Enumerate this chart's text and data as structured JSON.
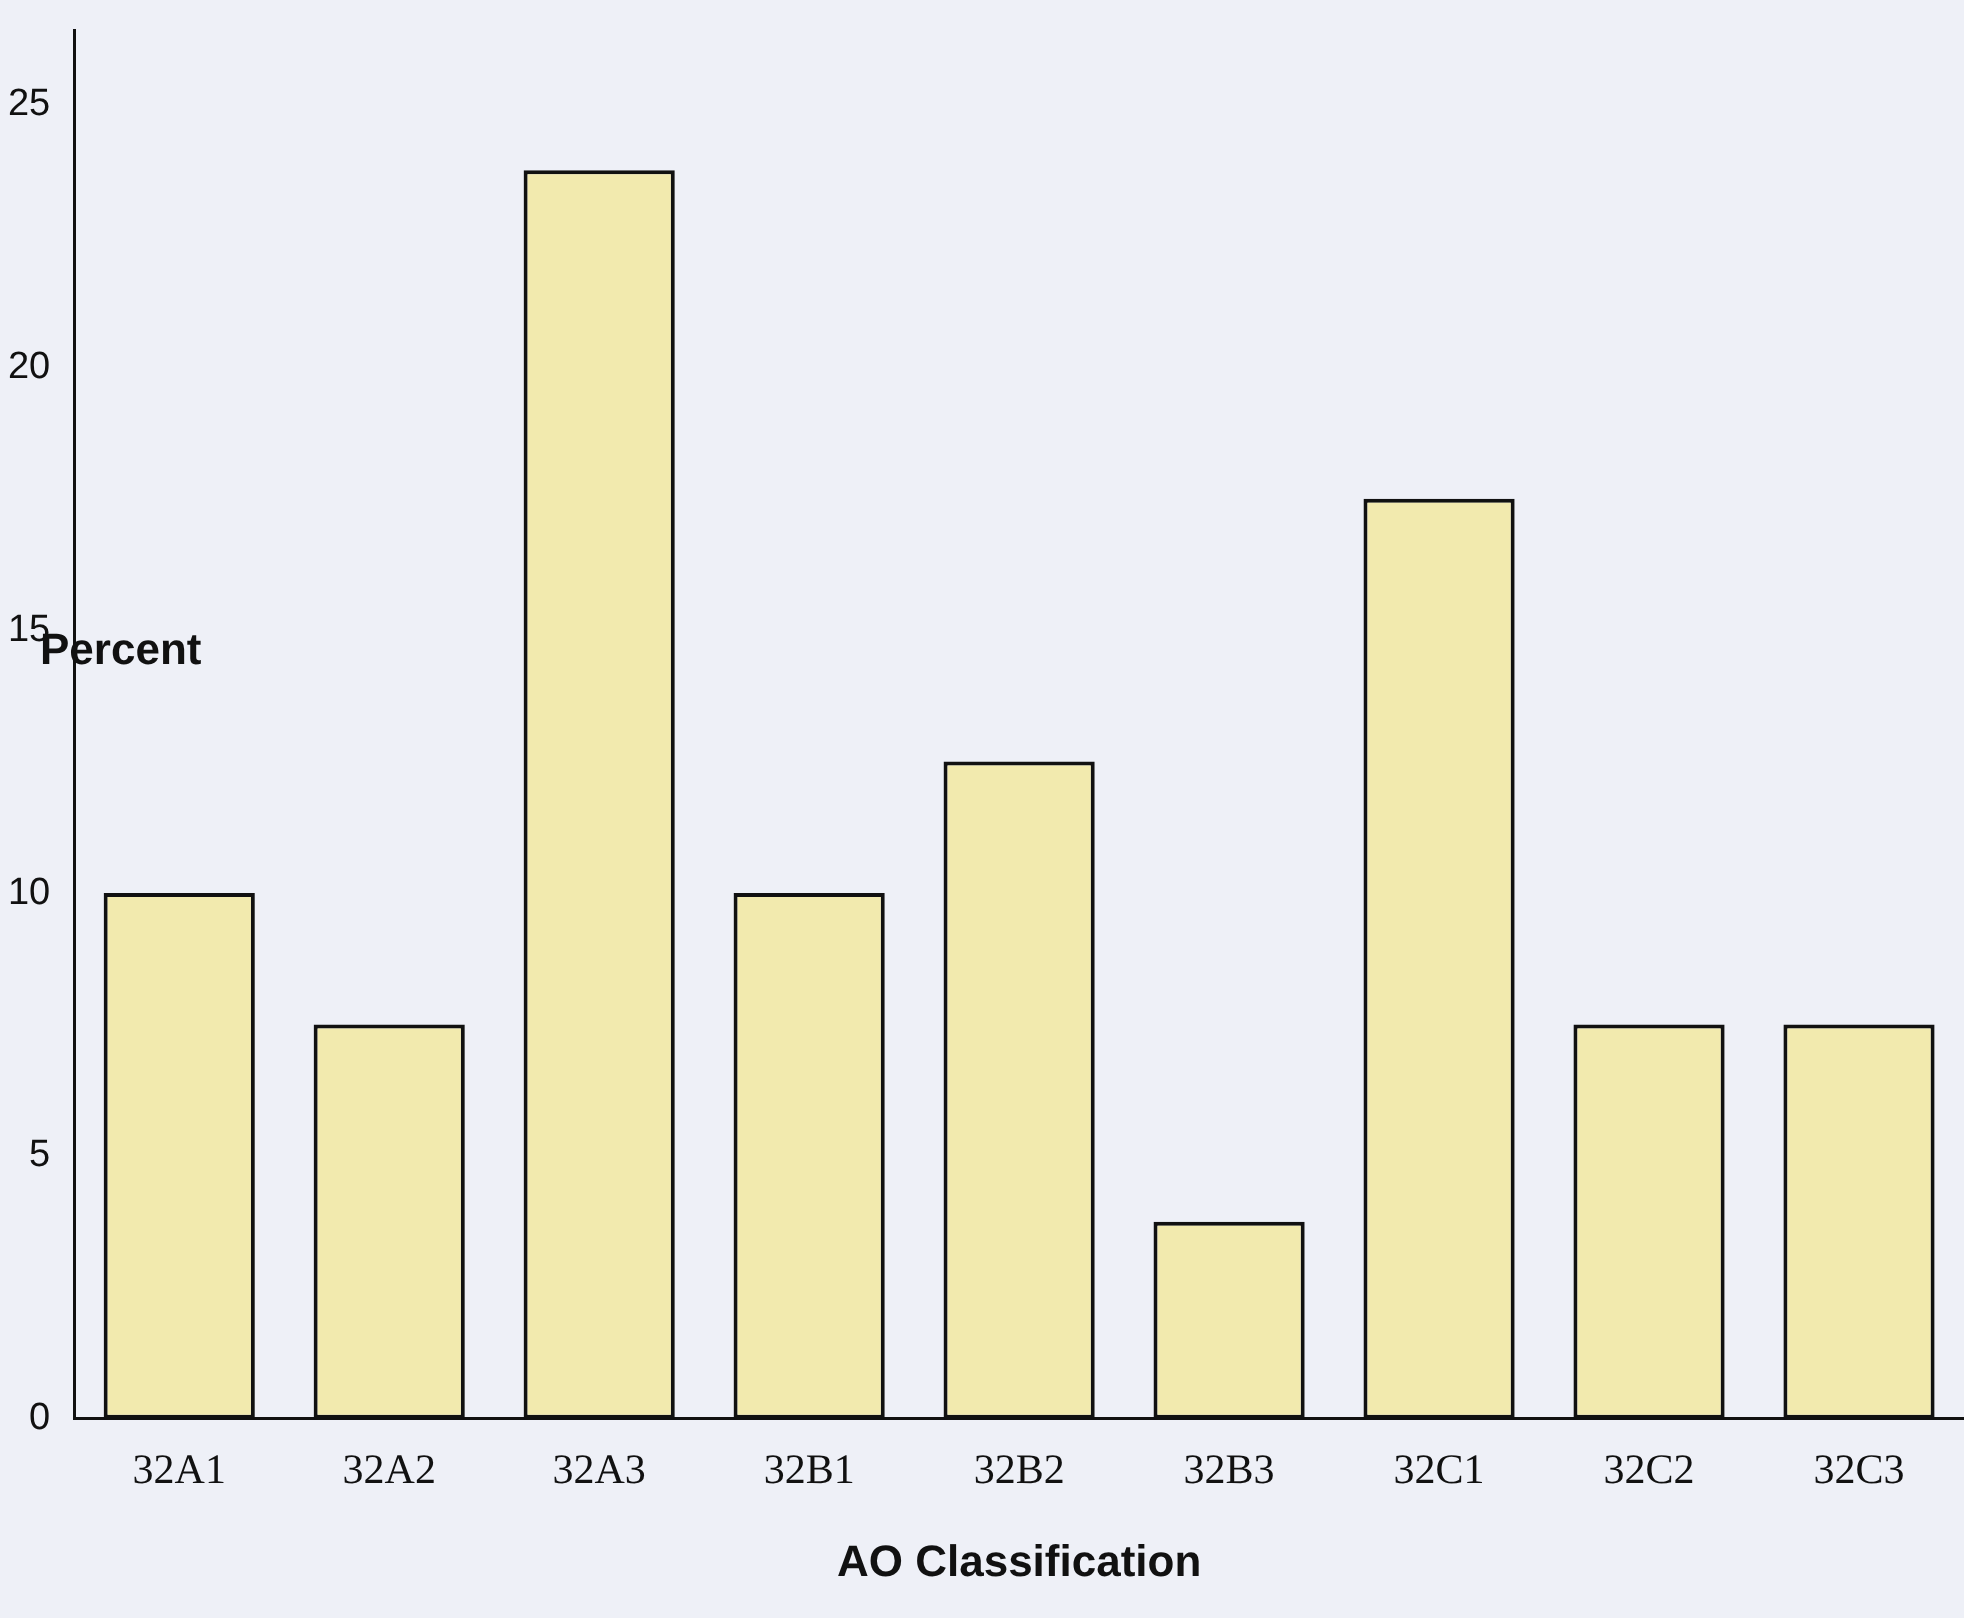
{
  "chart_data": {
    "type": "bar",
    "xlabel": "AO Classification",
    "ylabel": "Percent",
    "categories": [
      "32A1",
      "32A2",
      "32A3",
      "32B1",
      "32B2",
      "32B3",
      "32C1",
      "32C2",
      "32C3"
    ],
    "values": [
      10,
      7.5,
      23.75,
      10,
      12.5,
      3.75,
      17.5,
      7.5,
      7.5
    ],
    "color": "#f2eaae",
    "ylim": [
      0,
      26.4
    ],
    "yticks": [
      0,
      5,
      10,
      15,
      20,
      25
    ],
    "grid": false,
    "legend": false
  }
}
